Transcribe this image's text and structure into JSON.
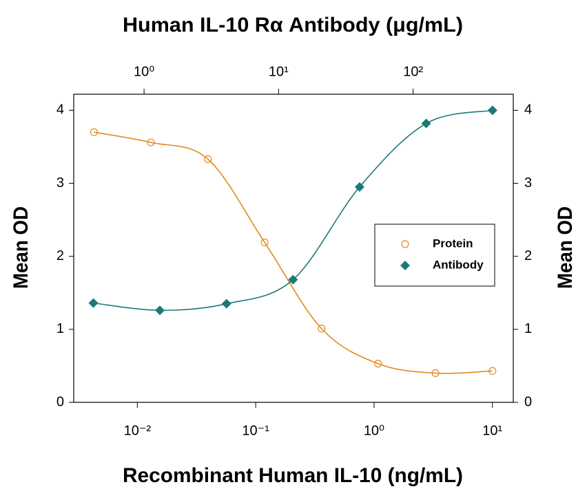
{
  "chart_data": {
    "type": "scatter",
    "title": "Human IL-10 Rα Antibody (μg/mL)",
    "xlabel": "Recombinant Human IL-10 (ng/mL)",
    "ylabel": "Mean OD",
    "y2label": "Mean OD",
    "xscale": "log",
    "xlim": [
      0.0029,
      15
    ],
    "xticks": [
      {
        "value": 0.01,
        "label": "10⁻²"
      },
      {
        "value": 0.1,
        "label": "10⁻¹"
      },
      {
        "value": 1,
        "label": "10⁰"
      },
      {
        "value": 10,
        "label": "10¹"
      }
    ],
    "x2lim": [
      0.3,
      555
    ],
    "x2ticks": [
      {
        "value": 1,
        "label": "10⁰"
      },
      {
        "value": 10,
        "label": "10¹"
      },
      {
        "value": 100,
        "label": "10²"
      }
    ],
    "ylim": [
      0,
      4.22
    ],
    "yticks": [
      0,
      1,
      2,
      3,
      4
    ],
    "y2lim": [
      0,
      4.22
    ],
    "y2ticks": [
      0,
      1,
      2,
      3,
      4
    ],
    "legend": "center right",
    "series": [
      {
        "name": "Protein",
        "color": "#e08a1e",
        "marker": "circle",
        "x": [
          0.0043,
          0.013,
          0.0395,
          0.119,
          0.36,
          1.08,
          3.3,
          10
        ],
        "values": [
          3.7,
          3.56,
          3.33,
          2.19,
          1.01,
          0.53,
          0.4,
          0.43
        ]
      },
      {
        "name": "Antibody",
        "color": "#1a7a78",
        "marker": "diamond",
        "xaxis": "x2",
        "axis": "y2",
        "x": [
          0.42,
          1.31,
          4.1,
          12.8,
          40,
          125,
          389
        ],
        "values": [
          1.36,
          1.26,
          1.35,
          1.68,
          2.95,
          3.82,
          4.0
        ]
      }
    ]
  }
}
